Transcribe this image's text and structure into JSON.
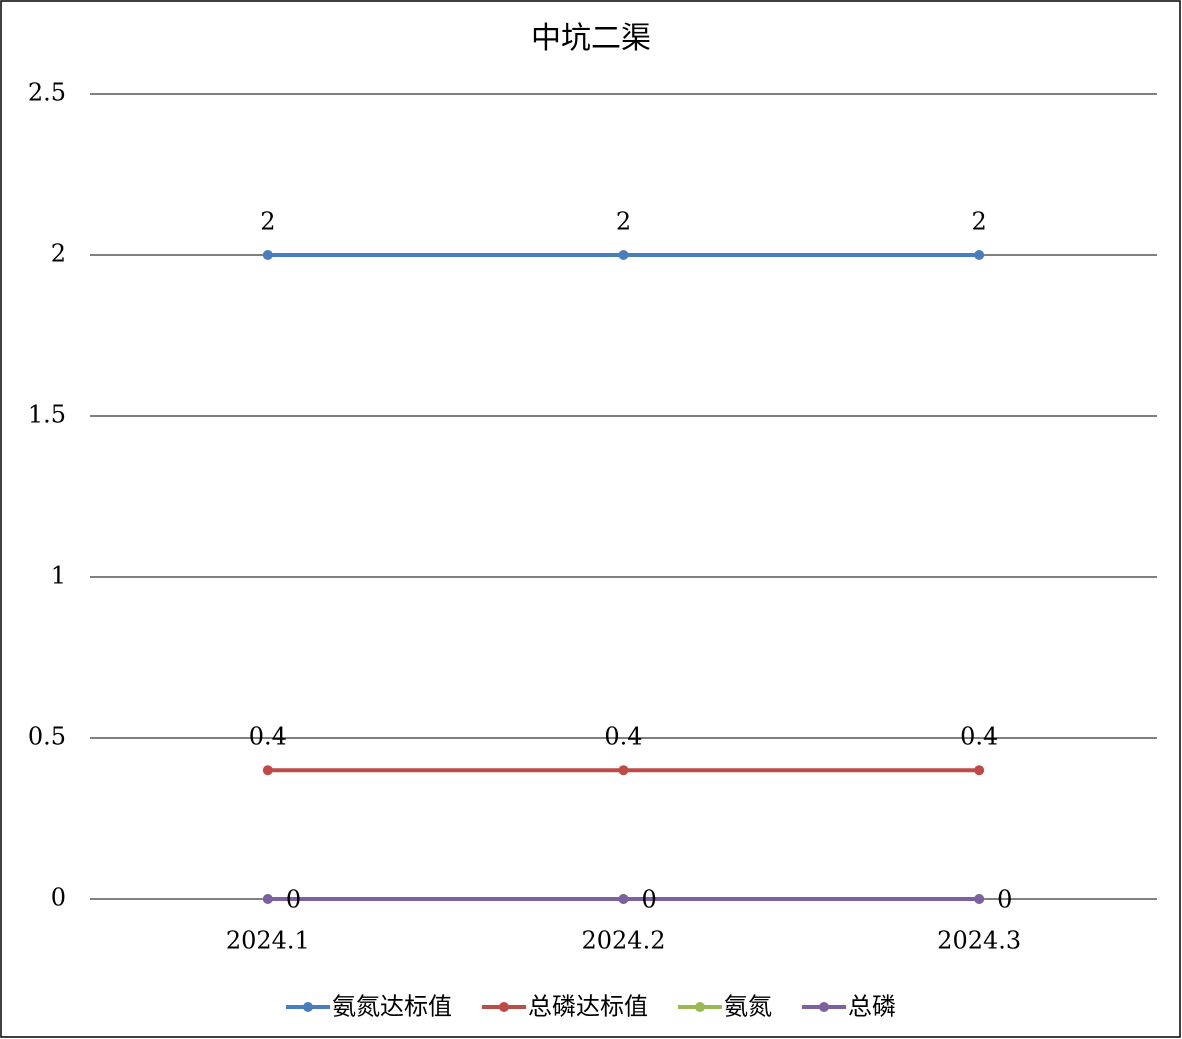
{
  "chart_data": {
    "type": "line",
    "title": "中坑二渠",
    "categories": [
      "2024.1",
      "2024.2",
      "2024.3"
    ],
    "series": [
      {
        "name": "氨氮达标值",
        "color": "#4a7ebb",
        "values": [
          2,
          2,
          2
        ],
        "label_position": "top"
      },
      {
        "name": "总磷达标值",
        "color": "#be4b48",
        "values": [
          0.4,
          0.4,
          0.4
        ],
        "label_position": "top"
      },
      {
        "name": "氨氮",
        "color": "#98b954",
        "values": [
          0,
          0,
          0
        ]
      },
      {
        "name": "总磷",
        "color": "#7d60a0",
        "values": [
          0,
          0,
          0
        ],
        "label_position": "right"
      }
    ],
    "ylim": [
      0,
      2.5
    ],
    "yticks": [
      0,
      0.5,
      1,
      1.5,
      2,
      2.5
    ],
    "grid": true,
    "legend": "bottom"
  }
}
